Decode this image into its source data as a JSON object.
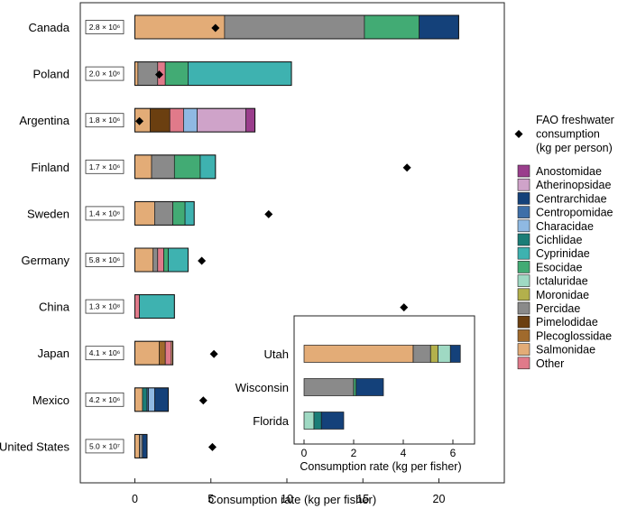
{
  "chart_data": [
    {
      "type": "bar",
      "orientation": "horizontal",
      "stacked": true,
      "xlabel": "Consumption rate (kg per fisher)",
      "xlim": [
        -3.5,
        22.2
      ],
      "xticks": [
        "0",
        "5",
        "10",
        "15",
        "20"
      ],
      "categories": [
        "Canada",
        "Poland",
        "Argentina",
        "Finland",
        "Sweden",
        "Germany",
        "China",
        "Japan",
        "Mexico",
        "United States"
      ],
      "fisher_counts": [
        "2.8 × 10⁶",
        "2.0 × 10⁶",
        "1.8 × 10⁶",
        "1.7 × 10⁶",
        "1.4 × 10⁶",
        "5.8 × 10⁶",
        "1.3 × 10⁸",
        "4.1 × 10⁶",
        "4.2 × 10⁶",
        "5.0 × 10⁷"
      ],
      "fao_label": "FAO freshwater consumption (kg per person)",
      "fao_consumption": [
        5.3,
        1.6,
        0.3,
        17.9,
        8.8,
        4.4,
        17.7,
        5.2,
        4.5,
        5.1
      ],
      "bars": [
        {
          "country": "Canada",
          "segments": [
            [
              "Salmonidae",
              5.9
            ],
            [
              "Percidae",
              15.1
            ],
            [
              "Esocidae",
              18.7
            ],
            [
              "Centrarchidae",
              21.3
            ]
          ]
        },
        {
          "country": "Poland",
          "segments": [
            [
              "Salmonidae",
              0.2
            ],
            [
              "Percidae",
              1.5
            ],
            [
              "Other",
              2.0
            ],
            [
              "Esocidae",
              3.5
            ],
            [
              "Cyprinidae",
              10.3
            ]
          ]
        },
        {
          "country": "Argentina",
          "segments": [
            [
              "Salmonidae",
              1.0
            ],
            [
              "Pimelodidae",
              2.3
            ],
            [
              "Other",
              3.2
            ],
            [
              "Characidae",
              4.1
            ],
            [
              "Atherinopsidae",
              7.3
            ],
            [
              "Anostomidae",
              7.9
            ]
          ]
        },
        {
          "country": "Finland",
          "segments": [
            [
              "Salmonidae",
              1.1
            ],
            [
              "Percidae",
              2.6
            ],
            [
              "Esocidae",
              4.3
            ],
            [
              "Cyprinidae",
              5.3
            ]
          ]
        },
        {
          "country": "Sweden",
          "segments": [
            [
              "Salmonidae",
              1.3
            ],
            [
              "Percidae",
              2.5
            ],
            [
              "Esocidae",
              3.3
            ],
            [
              "Cyprinidae",
              3.9
            ]
          ]
        },
        {
          "country": "Germany",
          "segments": [
            [
              "Salmonidae",
              1.2
            ],
            [
              "Percidae",
              1.5
            ],
            [
              "Other",
              1.9
            ],
            [
              "Esocidae",
              2.2
            ],
            [
              "Cyprinidae",
              3.5
            ]
          ]
        },
        {
          "country": "China",
          "segments": [
            [
              "Other",
              0.3
            ],
            [
              "Cyprinidae",
              2.6
            ]
          ]
        },
        {
          "country": "Japan",
          "segments": [
            [
              "Salmonidae",
              1.6
            ],
            [
              "Plecoglossidae",
              2.0
            ],
            [
              "Other",
              2.4
            ],
            [
              "Salmonidae",
              2.5
            ]
          ]
        },
        {
          "country": "Mexico",
          "segments": [
            [
              "Salmonidae",
              0.5
            ],
            [
              "Cichlidae",
              0.8
            ],
            [
              "Centropomidae",
              0.9
            ],
            [
              "Characidae",
              1.3
            ],
            [
              "Centrarchidae",
              2.2
            ]
          ]
        },
        {
          "country": "United States",
          "segments": [
            [
              "Salmonidae",
              0.3
            ],
            [
              "Percidae",
              0.5
            ],
            [
              "Centrarchidae",
              0.8
            ]
          ]
        }
      ]
    },
    {
      "type": "bar",
      "orientation": "horizontal",
      "stacked": true,
      "inset": true,
      "xlabel": "Consumption rate (kg per fisher)",
      "xlim": [
        -0.3,
        6.6
      ],
      "xticks": [
        "0",
        "2",
        "4",
        "6"
      ],
      "categories": [
        "Utah",
        "Wisconsin",
        "Florida"
      ],
      "bars": [
        {
          "state": "Utah",
          "segments": [
            [
              "Salmonidae",
              4.4
            ],
            [
              "Percidae",
              5.1
            ],
            [
              "Moronidae",
              5.4
            ],
            [
              "Ictaluridae",
              5.9
            ],
            [
              "Centrarchidae",
              6.3
            ]
          ]
        },
        {
          "state": "Wisconsin",
          "segments": [
            [
              "Percidae",
              2.0
            ],
            [
              "Esocidae",
              2.1
            ],
            [
              "Centrarchidae",
              3.2
            ]
          ]
        },
        {
          "state": "Florida",
          "segments": [
            [
              "Ictaluridae",
              0.4
            ],
            [
              "Cichlidae",
              0.7
            ],
            [
              "Centrarchidae",
              1.6
            ]
          ]
        }
      ]
    }
  ],
  "legend": {
    "families": [
      "Anostomidae",
      "Atherinopsidae",
      "Centrarchidae",
      "Centropomidae",
      "Characidae",
      "Cichlidae",
      "Cyprinidae",
      "Esocidae",
      "Ictaluridae",
      "Moronidae",
      "Percidae",
      "Pimelodidae",
      "Plecoglossidae",
      "Salmonidae",
      "Other"
    ]
  },
  "colors": {
    "Anostomidae": "#9a3e8c",
    "Atherinopsidae": "#cfa3c9",
    "Centrarchidae": "#14417a",
    "Centropomidae": "#3e6fa8",
    "Characidae": "#8fb9e3",
    "Cichlidae": "#1b7d77",
    "Cyprinidae": "#3eb2b0",
    "Esocidae": "#42ab74",
    "Ictaluridae": "#9fd9c3",
    "Moronidae": "#b3b04c",
    "Percidae": "#8a8a8a",
    "Pimelodidae": "#6b3f10",
    "Plecoglossidae": "#a06a2c",
    "Salmonidae": "#e3ac77",
    "Other": "#e07a8a"
  }
}
